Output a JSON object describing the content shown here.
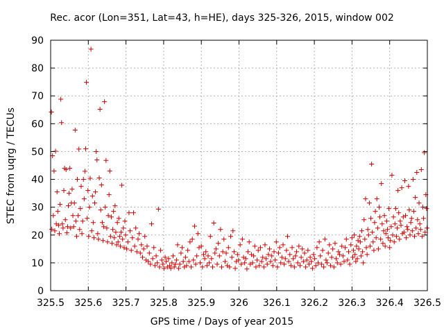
{
  "chart_data": {
    "type": "scatter",
    "title": "Rec. acor (Lon=351, Lat=43, h=HE), days 325-326, 2015, window 002",
    "xlabel": "GPS time / Days of year 2015",
    "ylabel": "STEC from uqrg / TECUs",
    "xlim": [
      325.5,
      326.5
    ],
    "ylim": [
      0,
      90
    ],
    "xticks": [
      "325.5",
      "325.6",
      "325.7",
      "325.8",
      "325.9",
      "326",
      "326.1",
      "326.2",
      "326.3",
      "326.4",
      "326.5"
    ],
    "yticks": [
      "0",
      "10",
      "20",
      "30",
      "40",
      "50",
      "60",
      "70",
      "80",
      "90"
    ],
    "grid": true,
    "marker": "+",
    "color": "#cc0000",
    "series": [
      {
        "name": "",
        "x": [
          325.502,
          325.503,
          325.505,
          325.507,
          325.509,
          325.511,
          325.513,
          325.515,
          325.517,
          325.519,
          325.521,
          325.523,
          325.525,
          325.527,
          325.529,
          325.531,
          325.533,
          325.535,
          325.537,
          325.539,
          325.541,
          325.543,
          325.545,
          325.547,
          325.549,
          325.551,
          325.553,
          325.555,
          325.557,
          325.559,
          325.561,
          325.563,
          325.565,
          325.567,
          325.569,
          325.571,
          325.573,
          325.575,
          325.577,
          325.579,
          325.581,
          325.583,
          325.585,
          325.587,
          325.589,
          325.591,
          325.593,
          325.595,
          325.597,
          325.599,
          325.601,
          325.603,
          325.605,
          325.607,
          325.609,
          325.611,
          325.613,
          325.615,
          325.617,
          325.619,
          325.621,
          325.623,
          325.625,
          325.627,
          325.629,
          325.631,
          325.633,
          325.635,
          325.637,
          325.639,
          325.641,
          325.643,
          325.645,
          325.647,
          325.649,
          325.651,
          325.653,
          325.655,
          325.657,
          325.659,
          325.661,
          325.663,
          325.665,
          325.667,
          325.669,
          325.671,
          325.673,
          325.675,
          325.677,
          325.679,
          325.681,
          325.683,
          325.685,
          325.687,
          325.689,
          325.691,
          325.693,
          325.695,
          325.697,
          325.699,
          325.702,
          325.705,
          325.708,
          325.711,
          325.714,
          325.717,
          325.72,
          325.723,
          325.726,
          325.729,
          325.732,
          325.735,
          325.738,
          325.741,
          325.744,
          325.747,
          325.75,
          325.753,
          325.756,
          325.759,
          325.762,
          325.765,
          325.768,
          325.771,
          325.774,
          325.777,
          325.78,
          325.783,
          325.786,
          325.789,
          325.792,
          325.795,
          325.798,
          325.801,
          325.804,
          325.807,
          325.81,
          325.813,
          325.816,
          325.819,
          325.822,
          325.825,
          325.828,
          325.831,
          325.834,
          325.837,
          325.84,
          325.843,
          325.846,
          325.849,
          325.852,
          325.855,
          325.858,
          325.861,
          325.864,
          325.867,
          325.87,
          325.873,
          325.876,
          325.879,
          325.882,
          325.885,
          325.888,
          325.891,
          325.894,
          325.897,
          325.9,
          325.903,
          325.906,
          325.909,
          325.912,
          325.915,
          325.918,
          325.921,
          325.924,
          325.927,
          325.93,
          325.933,
          325.936,
          325.939,
          325.942,
          325.945,
          325.948,
          325.951,
          325.954,
          325.957,
          325.96,
          325.963,
          325.966,
          325.969,
          325.972,
          325.975,
          325.978,
          325.981,
          325.984,
          325.987,
          325.99,
          325.993,
          325.996,
          325.999,
          326.003,
          326.006,
          326.009,
          326.012,
          326.015,
          326.018,
          326.021,
          326.024,
          326.027,
          326.03,
          326.033,
          326.036,
          326.039,
          326.042,
          326.045,
          326.048,
          326.051,
          326.054,
          326.057,
          326.06,
          326.063,
          326.066,
          326.069,
          326.072,
          326.075,
          326.078,
          326.081,
          326.084,
          326.087,
          326.09,
          326.093,
          326.096,
          326.099,
          326.102,
          326.105,
          326.108,
          326.111,
          326.114,
          326.117,
          326.12,
          326.123,
          326.126,
          326.129,
          326.132,
          326.135,
          326.138,
          326.141,
          326.144,
          326.147,
          326.15,
          326.153,
          326.156,
          326.159,
          326.162,
          326.165,
          326.168,
          326.171,
          326.174,
          326.177,
          326.18,
          326.183,
          326.186,
          326.189,
          326.192,
          326.195,
          326.198,
          326.201,
          326.204,
          326.207,
          326.21,
          326.213,
          326.216,
          326.219,
          326.222,
          326.225,
          326.228,
          326.231,
          326.234,
          326.237,
          326.24,
          326.243,
          326.246,
          326.249,
          326.252,
          326.255,
          326.258,
          326.261,
          326.264,
          326.267,
          326.27,
          326.273,
          326.276,
          326.279,
          326.282,
          326.285,
          326.288,
          326.291,
          326.294,
          326.297,
          326.3,
          326.302,
          326.304,
          326.306,
          326.308,
          326.31,
          326.312,
          326.314,
          326.316,
          326.318,
          326.32,
          326.322,
          326.324,
          326.326,
          326.328,
          326.33,
          326.332,
          326.334,
          326.336,
          326.338,
          326.34,
          326.342,
          326.344,
          326.346,
          326.348,
          326.35,
          326.352,
          326.354,
          326.356,
          326.358,
          326.36,
          326.362,
          326.364,
          326.366,
          326.368,
          326.37,
          326.372,
          326.374,
          326.376,
          326.378,
          326.38,
          326.382,
          326.384,
          326.386,
          326.388,
          326.39,
          326.392,
          326.394,
          326.396,
          326.398,
          326.4,
          326.402,
          326.404,
          326.406,
          326.408,
          326.41,
          326.412,
          326.414,
          326.416,
          326.418,
          326.42,
          326.422,
          326.424,
          326.426,
          326.428,
          326.43,
          326.432,
          326.434,
          326.436,
          326.438,
          326.44,
          326.442,
          326.444,
          326.446,
          326.448,
          326.45,
          326.452,
          326.454,
          326.456,
          326.458,
          326.46,
          326.462,
          326.464,
          326.466,
          326.468,
          326.47,
          326.472,
          326.474,
          326.476,
          326.478,
          326.48,
          326.482,
          326.484,
          326.486,
          326.488,
          326.49,
          326.492,
          326.494,
          326.496,
          326.498,
          326.499
        ],
        "y": [
          64.2,
          22.1,
          48.5,
          27.0,
          43.0,
          21.5,
          50.1,
          24.0,
          35.5,
          28.5,
          23.5,
          20.5,
          31.0,
          68.8,
          60.4,
          24.0,
          22.5,
          36.0,
          44.0,
          25.5,
          43.5,
          20.8,
          23.0,
          30.5,
          35.0,
          44.0,
          22.5,
          31.5,
          36.5,
          27.0,
          23.0,
          31.5,
          57.7,
          25.0,
          19.5,
          40.0,
          27.0,
          50.9,
          22.0,
          29.5,
          37.5,
          20.5,
          25.0,
          40.0,
          33.0,
          42.9,
          51.0,
          74.9,
          26.0,
          36.0,
          19.5,
          30.0,
          40.4,
          86.8,
          21.5,
          34.0,
          24.5,
          19.0,
          31.5,
          35.5,
          50.0,
          47.0,
          20.5,
          18.5,
          40.5,
          65.2,
          29.0,
          38.0,
          24.5,
          18.0,
          23.0,
          67.9,
          30.0,
          46.8,
          22.5,
          17.5,
          27.0,
          34.5,
          43.0,
          19.5,
          26.5,
          17.0,
          22.0,
          28.5,
          19.0,
          30.5,
          21.0,
          16.5,
          24.5,
          17.5,
          26.0,
          19.5,
          16.0,
          21.0,
          37.9,
          18.5,
          22.5,
          15.5,
          25.0,
          20.0,
          15.0,
          17.5,
          28.0,
          21.5,
          14.5,
          19.0,
          28.0,
          16.0,
          22.5,
          14.0,
          18.5,
          20.5,
          13.5,
          16.5,
          12.0,
          15.0,
          19.5,
          11.0,
          16.0,
          10.5,
          13.5,
          9.5,
          24.0,
          11.5,
          15.5,
          9.0,
          12.5,
          10.0,
          29.3,
          8.5,
          14.5,
          11.0,
          9.5,
          8.0,
          12.0,
          10.5,
          8.5,
          11.5,
          9.0,
          8.0,
          10.0,
          12.5,
          8.5,
          9.5,
          11.0,
          16.5,
          8.0,
          9.5,
          13.5,
          15.5,
          10.5,
          8.5,
          12.0,
          9.0,
          14.5,
          10.5,
          17.5,
          8.5,
          18.5,
          11.0,
          23.2,
          9.5,
          12.5,
          20.5,
          15.5,
          10.0,
          16.0,
          8.5,
          13.0,
          11.5,
          14.0,
          9.0,
          12.5,
          10.0,
          19.5,
          11.5,
          8.5,
          24.3,
          13.5,
          15.0,
          9.5,
          17.0,
          12.5,
          22.0,
          8.5,
          14.0,
          18.5,
          10.5,
          13.5,
          9.0,
          15.5,
          8.5,
          19.5,
          12.0,
          21.5,
          14.0,
          8.0,
          10.5,
          13.0,
          11.0,
          16.5,
          9.5,
          18.5,
          12.0,
          10.0,
          11.5,
          7.8,
          14.0,
          17.5,
          9.5,
          13.0,
          10.0,
          12.5,
          16.0,
          8.5,
          11.0,
          14.5,
          9.0,
          15.5,
          10.5,
          12.0,
          8.5,
          16.5,
          11.5,
          9.5,
          13.0,
          15.0,
          10.5,
          12.5,
          9.0,
          14.0,
          11.0,
          17.5,
          8.5,
          13.5,
          15.5,
          10.0,
          12.0,
          16.5,
          9.5,
          11.5,
          14.5,
          19.5,
          10.5,
          13.0,
          9.0,
          15.5,
          11.5,
          8.5,
          12.5,
          14.0,
          10.0,
          16.0,
          9.0,
          12.0,
          15.0,
          10.5,
          13.5,
          8.5,
          11.0,
          14.5,
          9.5,
          12.0,
          10.5,
          8.0,
          13.0,
          11.5,
          9.0,
          15.5,
          10.0,
          17.5,
          12.5,
          9.5,
          14.5,
          8.5,
          18.5,
          11.0,
          10.0,
          13.5,
          16.5,
          9.0,
          12.0,
          15.0,
          8.5,
          17.0,
          11.5,
          10.0,
          14.0,
          13.0,
          9.5,
          16.0,
          12.5,
          10.5,
          15.5,
          18.5,
          11.0,
          14.0,
          9.5,
          16.5,
          19.0,
          12.0,
          14.5,
          20.0,
          13.0,
          10.5,
          16.0,
          11.5,
          18.0,
          15.0,
          19.5,
          17.5,
          12.5,
          21.5,
          14.0,
          10.0,
          25.5,
          18.5,
          33.0,
          15.5,
          13.0,
          22.0,
          20.0,
          31.5,
          16.0,
          26.0,
          45.5,
          21.0,
          17.5,
          14.5,
          24.5,
          28.5,
          19.0,
          33.0,
          22.5,
          15.0,
          30.0,
          26.5,
          18.5,
          38.5,
          24.0,
          17.0,
          21.5,
          27.0,
          16.0,
          20.5,
          25.0,
          22.0,
          19.0,
          29.5,
          15.5,
          18.0,
          23.0,
          41.5,
          20.0,
          26.5,
          17.5,
          24.0,
          29.5,
          19.5,
          22.5,
          36.0,
          28.0,
          18.5,
          25.0,
          23.5,
          37.0,
          20.5,
          26.5,
          21.0,
          39.5,
          27.0,
          19.0,
          23.0,
          22.0,
          37.5,
          29.0,
          20.0,
          24.5,
          26.0,
          21.5,
          40.0,
          28.5,
          19.5,
          33.5,
          22.5,
          42.5,
          25.5,
          20.5,
          31.5,
          24.0,
          22.0,
          43.5,
          19.5,
          30.0,
          26.0,
          49.6,
          21.0,
          34.5,
          29.5,
          22.5
        ]
      }
    ]
  }
}
